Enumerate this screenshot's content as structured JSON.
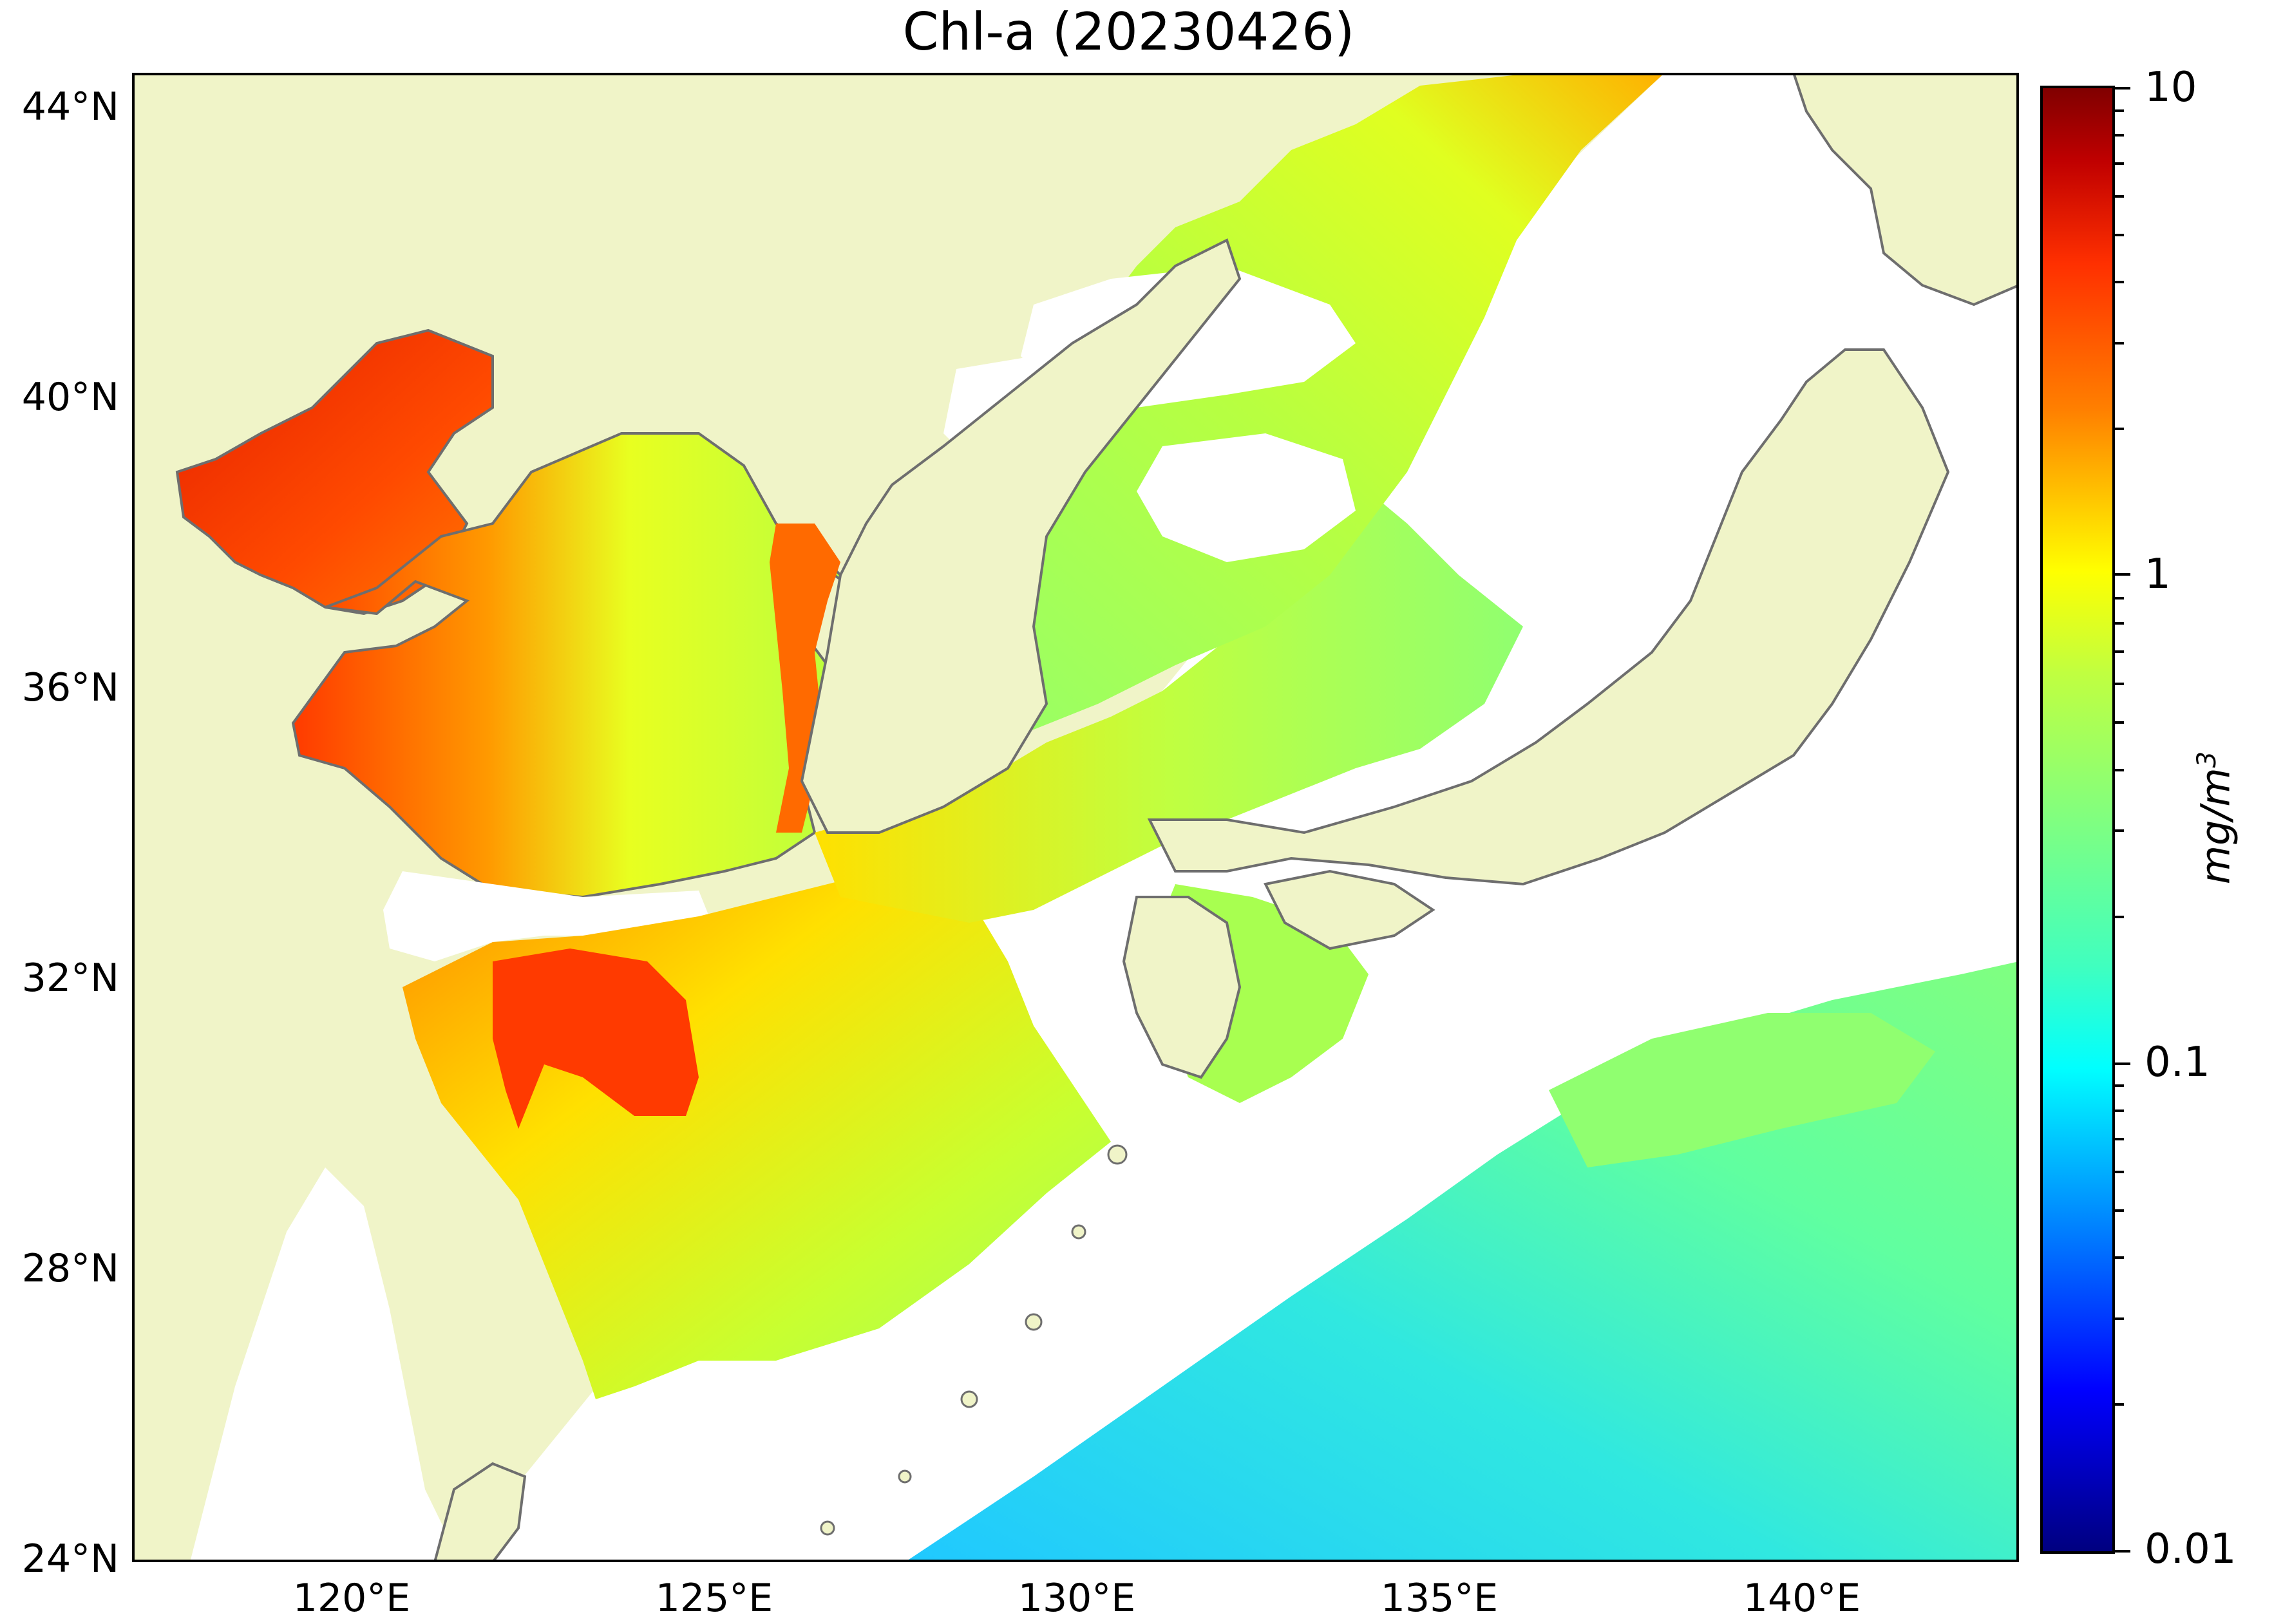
{
  "title": "Chl-a (20230426)",
  "map": {
    "lon_range": [
      117,
      143
    ],
    "lat_range": [
      24,
      44.5
    ],
    "lat_ticks": [
      "44°N",
      "40°N",
      "36°N",
      "32°N",
      "28°N",
      "24°N"
    ],
    "lon_ticks": [
      "120°E",
      "125°E",
      "130°E",
      "135°E",
      "140°E"
    ],
    "colors": {
      "land": "#f0f4c8",
      "no_data": "#ffffff",
      "coastline": "#6e6e6e"
    }
  },
  "colorbar": {
    "scale": "log",
    "range": [
      0.01,
      10
    ],
    "tick_labels": [
      "10",
      "1",
      "0.1",
      "0.01"
    ],
    "unit": "mg/m",
    "unit_sup": "3"
  }
}
